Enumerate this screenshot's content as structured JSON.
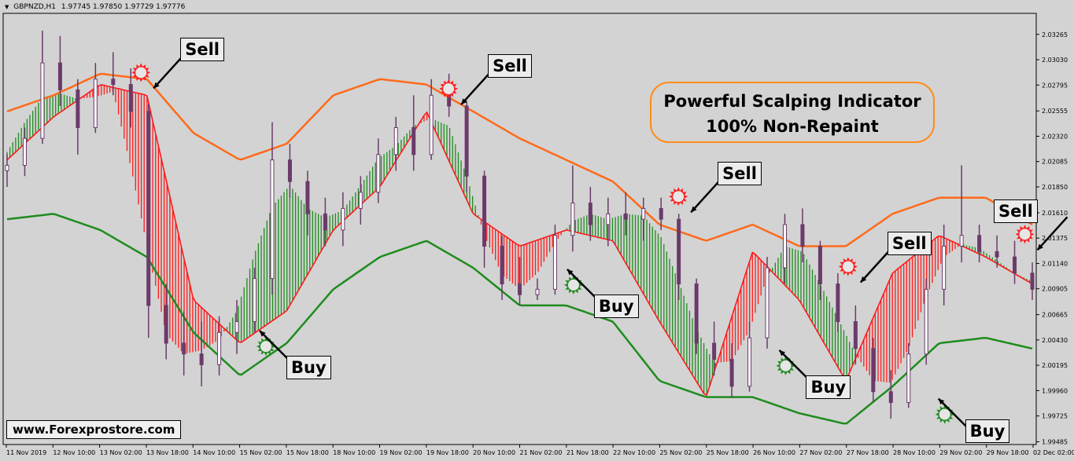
{
  "header": {
    "symbol": "GBPNZD,H1",
    "ohlc": "1.97745 1.97850 1.97729 1.97776"
  },
  "promo": {
    "line1": "Powerful Scalping Indicator",
    "line2": "100% Non-Repaint"
  },
  "website": "www.Forexprostore.com",
  "colors": {
    "background": "#d3d3d3",
    "upper_band": "#ff6a1a",
    "lower_band": "#1e8c1e",
    "bull_fill": "#1e8c1e",
    "bear_fill": "#ff1a1a",
    "candle": "#6b3b6b",
    "sell_star": "#ff2020",
    "buy_star": "#228b22"
  },
  "chart_data": {
    "type": "line",
    "symbol": "GBPNZD",
    "timeframe": "H1",
    "ylim": [
      1.9946,
      2.0346
    ],
    "y_ticks": [
      "2.03265",
      "2.03030",
      "2.02795",
      "2.02555",
      "2.02320",
      "2.02085",
      "2.01850",
      "2.01610",
      "2.01375",
      "2.01140",
      "2.00905",
      "2.00665",
      "2.00430",
      "2.00195",
      "1.99960",
      "1.99725",
      "1.99485"
    ],
    "x_ticks": [
      "11 Nov 2019",
      "12 Nov 10:00",
      "13 Nov 02:00",
      "13 Nov 18:00",
      "14 Nov 10:00",
      "15 Nov 02:00",
      "15 Nov 18:00",
      "18 Nov 10:00",
      "19 Nov 02:00",
      "19 Nov 18:00",
      "20 Nov 10:00",
      "21 Nov 02:00",
      "21 Nov 18:00",
      "22 Nov 10:00",
      "25 Nov 02:00",
      "25 Nov 18:00",
      "26 Nov 10:00",
      "27 Nov 02:00",
      "27 Nov 18:00",
      "28 Nov 10:00",
      "29 Nov 02:00",
      "29 Nov 18:00",
      "02 Dec 02:00"
    ],
    "x": [
      0,
      2,
      4,
      6,
      8,
      10,
      12,
      14,
      16,
      18,
      20,
      22,
      24,
      26,
      28,
      30,
      32,
      34,
      36,
      38,
      40,
      42,
      44
    ],
    "series": [
      {
        "values": [
          2.0255,
          2.027,
          2.029,
          2.0285,
          2.0235,
          2.021,
          2.0225,
          2.027,
          2.0285,
          2.028,
          2.0255,
          2.023,
          2.021,
          2.019,
          2.015,
          2.0135,
          2.015,
          2.013,
          2.013,
          2.016,
          2.0175,
          2.0175,
          2.015
        ]
      },
      {
        "values": [
          2.021,
          2.025,
          2.028,
          2.027,
          2.008,
          2.004,
          2.007,
          2.0145,
          2.0185,
          2.0255,
          2.016,
          2.013,
          2.0145,
          2.0135,
          2.006,
          1.999,
          2.0125,
          2.008,
          2.0005,
          2.0105,
          2.014,
          2.012,
          2.0095
        ]
      },
      {
        "values": [
          2.0155,
          2.016,
          2.0145,
          2.012,
          2.005,
          2.001,
          2.004,
          2.009,
          2.012,
          2.0135,
          2.011,
          2.0075,
          2.0075,
          2.006,
          2.0005,
          1.999,
          1.999,
          1.9975,
          1.9965,
          2.0,
          2.004,
          2.0045,
          2.0035
        ]
      }
    ],
    "candles": [
      {
        "x": 0,
        "o": 2.02,
        "h": 2.0215,
        "l": 2.0185,
        "c": 2.0205
      },
      {
        "x": 1,
        "o": 2.0205,
        "h": 2.024,
        "l": 2.0195,
        "c": 2.023
      },
      {
        "x": 2,
        "o": 2.023,
        "h": 2.033,
        "l": 2.0225,
        "c": 2.03
      },
      {
        "x": 3,
        "o": 2.03,
        "h": 2.0325,
        "l": 2.026,
        "c": 2.0275
      },
      {
        "x": 4,
        "o": 2.0275,
        "h": 2.0285,
        "l": 2.0215,
        "c": 2.024
      },
      {
        "x": 5,
        "o": 2.024,
        "h": 2.03,
        "l": 2.0235,
        "c": 2.0285
      },
      {
        "x": 6,
        "o": 2.0285,
        "h": 2.031,
        "l": 2.027,
        "c": 2.028
      },
      {
        "x": 7,
        "o": 2.028,
        "h": 2.0295,
        "l": 2.024,
        "c": 2.0255
      },
      {
        "x": 8,
        "o": 2.0255,
        "h": 2.0262,
        "l": 2.0045,
        "c": 2.0075
      },
      {
        "x": 9,
        "o": 2.0075,
        "h": 2.0095,
        "l": 2.0025,
        "c": 2.004
      },
      {
        "x": 10,
        "o": 2.004,
        "h": 2.007,
        "l": 2.001,
        "c": 2.003
      },
      {
        "x": 11,
        "o": 2.003,
        "h": 2.006,
        "l": 2.0,
        "c": 2.002
      },
      {
        "x": 12,
        "o": 2.002,
        "h": 2.0065,
        "l": 2.001,
        "c": 2.005
      },
      {
        "x": 13,
        "o": 2.005,
        "h": 2.008,
        "l": 2.003,
        "c": 2.006
      },
      {
        "x": 14,
        "o": 2.006,
        "h": 2.011,
        "l": 2.005,
        "c": 2.01
      },
      {
        "x": 15,
        "o": 2.01,
        "h": 2.0245,
        "l": 2.0085,
        "c": 2.021
      },
      {
        "x": 16,
        "o": 2.021,
        "h": 2.0225,
        "l": 2.0175,
        "c": 2.019
      },
      {
        "x": 17,
        "o": 2.019,
        "h": 2.02,
        "l": 2.014,
        "c": 2.016
      },
      {
        "x": 18,
        "o": 2.016,
        "h": 2.0175,
        "l": 2.013,
        "c": 2.0145
      },
      {
        "x": 19,
        "o": 2.0145,
        "h": 2.018,
        "l": 2.013,
        "c": 2.0165
      },
      {
        "x": 20,
        "o": 2.0165,
        "h": 2.0195,
        "l": 2.015,
        "c": 2.018
      },
      {
        "x": 21,
        "o": 2.018,
        "h": 2.023,
        "l": 2.017,
        "c": 2.0215
      },
      {
        "x": 22,
        "o": 2.0215,
        "h": 2.025,
        "l": 2.02,
        "c": 2.024
      },
      {
        "x": 23,
        "o": 2.024,
        "h": 2.027,
        "l": 2.02,
        "c": 2.0215
      },
      {
        "x": 24,
        "o": 2.0215,
        "h": 2.0285,
        "l": 2.021,
        "c": 2.027
      },
      {
        "x": 25,
        "o": 2.027,
        "h": 2.029,
        "l": 2.025,
        "c": 2.026
      },
      {
        "x": 26,
        "o": 2.026,
        "h": 2.0265,
        "l": 2.018,
        "c": 2.0195
      },
      {
        "x": 27,
        "o": 2.0195,
        "h": 2.02,
        "l": 2.011,
        "c": 2.013
      },
      {
        "x": 28,
        "o": 2.013,
        "h": 2.014,
        "l": 2.008,
        "c": 2.0095
      },
      {
        "x": 29,
        "o": 2.0095,
        "h": 2.012,
        "l": 2.0075,
        "c": 2.0085
      },
      {
        "x": 30,
        "o": 2.0085,
        "h": 2.01,
        "l": 2.008,
        "c": 2.009
      },
      {
        "x": 31,
        "o": 2.009,
        "h": 2.015,
        "l": 2.0085,
        "c": 2.014
      },
      {
        "x": 32,
        "o": 2.014,
        "h": 2.0205,
        "l": 2.0125,
        "c": 2.017
      },
      {
        "x": 33,
        "o": 2.017,
        "h": 2.0185,
        "l": 2.0135,
        "c": 2.015
      },
      {
        "x": 34,
        "o": 2.015,
        "h": 2.0175,
        "l": 2.013,
        "c": 2.016
      },
      {
        "x": 35,
        "o": 2.016,
        "h": 2.018,
        "l": 2.014,
        "c": 2.0155
      },
      {
        "x": 36,
        "o": 2.0155,
        "h": 2.0175,
        "l": 2.0135,
        "c": 2.0165
      },
      {
        "x": 37,
        "o": 2.0165,
        "h": 2.0175,
        "l": 2.0145,
        "c": 2.0155
      },
      {
        "x": 38,
        "o": 2.0155,
        "h": 2.016,
        "l": 2.008,
        "c": 2.0095
      },
      {
        "x": 39,
        "o": 2.0095,
        "h": 2.01,
        "l": 2.003,
        "c": 2.004
      },
      {
        "x": 40,
        "o": 2.004,
        "h": 2.006,
        "l": 2.001,
        "c": 2.0025
      },
      {
        "x": 41,
        "o": 2.0025,
        "h": 2.004,
        "l": 1.999,
        "c": 2.0
      },
      {
        "x": 42,
        "o": 2.0,
        "h": 2.006,
        "l": 1.9995,
        "c": 2.0045
      },
      {
        "x": 43,
        "o": 2.0045,
        "h": 2.012,
        "l": 2.0035,
        "c": 2.011
      },
      {
        "x": 44,
        "o": 2.011,
        "h": 2.016,
        "l": 2.0095,
        "c": 2.015
      },
      {
        "x": 45,
        "o": 2.015,
        "h": 2.0165,
        "l": 2.0115,
        "c": 2.013
      },
      {
        "x": 46,
        "o": 2.013,
        "h": 2.0135,
        "l": 2.008,
        "c": 2.0095
      },
      {
        "x": 47,
        "o": 2.0095,
        "h": 2.0105,
        "l": 2.005,
        "c": 2.006
      },
      {
        "x": 48,
        "o": 2.006,
        "h": 2.0075,
        "l": 2.002,
        "c": 2.0035
      },
      {
        "x": 49,
        "o": 2.0035,
        "h": 2.0045,
        "l": 1.9985,
        "c": 1.9995
      },
      {
        "x": 50,
        "o": 1.9995,
        "h": 2.0015,
        "l": 1.997,
        "c": 1.9985
      },
      {
        "x": 51,
        "o": 1.9985,
        "h": 2.004,
        "l": 1.998,
        "c": 2.003
      },
      {
        "x": 52,
        "o": 2.003,
        "h": 2.01,
        "l": 2.002,
        "c": 2.009
      },
      {
        "x": 53,
        "o": 2.009,
        "h": 2.015,
        "l": 2.0075,
        "c": 2.013
      },
      {
        "x": 54,
        "o": 2.013,
        "h": 2.0205,
        "l": 2.0115,
        "c": 2.014
      },
      {
        "x": 55,
        "o": 2.014,
        "h": 2.015,
        "l": 2.0115,
        "c": 2.0125
      },
      {
        "x": 56,
        "o": 2.0125,
        "h": 2.014,
        "l": 2.011,
        "c": 2.012
      },
      {
        "x": 57,
        "o": 2.012,
        "h": 2.0135,
        "l": 2.0095,
        "c": 2.0105
      },
      {
        "x": 58,
        "o": 2.0105,
        "h": 2.0115,
        "l": 2.008,
        "c": 2.009
      }
    ],
    "signals": [
      {
        "type": "Sell",
        "label": "Sell",
        "x": 8.2,
        "price": 2.0275
      },
      {
        "type": "Sell",
        "label": "Sell",
        "x": 25.6,
        "price": 2.026
      },
      {
        "type": "Sell",
        "label": "Sell",
        "x": 38.6,
        "price": 2.016
      },
      {
        "type": "Sell",
        "label": "Sell",
        "x": 48.2,
        "price": 2.0095
      },
      {
        "type": "Sell",
        "label": "Sell",
        "x": 58.2,
        "price": 2.0125
      },
      {
        "type": "Buy",
        "label": "Buy",
        "x": 14.2,
        "price": 2.0053
      },
      {
        "type": "Buy",
        "label": "Buy",
        "x": 31.6,
        "price": 2.011
      },
      {
        "type": "Buy",
        "label": "Buy",
        "x": 43.6,
        "price": 2.0035
      },
      {
        "type": "Buy",
        "label": "Buy",
        "x": 52.6,
        "price": 1.999
      }
    ]
  }
}
